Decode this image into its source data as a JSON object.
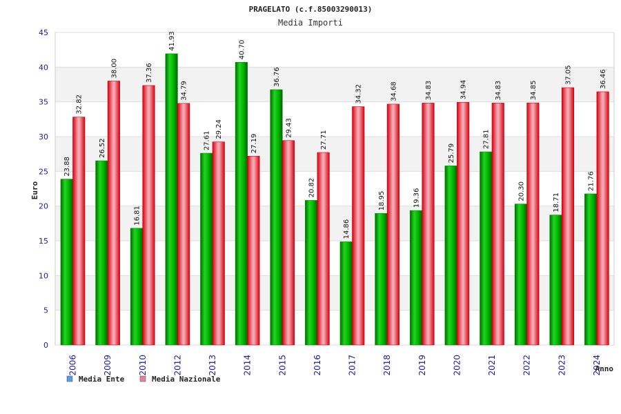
{
  "chart_data": {
    "type": "bar",
    "title": "PRAGELATO (c.f.85003290013)",
    "subtitle": "Media Importi",
    "xlabel": "Anno",
    "ylabel": "Euro",
    "ylim": [
      0,
      45
    ],
    "yticks": [
      "0",
      "5",
      "10",
      "15",
      "20",
      "25",
      "30",
      "35",
      "40",
      "45"
    ],
    "grid": true,
    "legend_position": "bottom-left",
    "categories": [
      "2006",
      "2009",
      "2010",
      "2012",
      "2013",
      "2014",
      "2015",
      "2016",
      "2017",
      "2018",
      "2019",
      "2020",
      "2021",
      "2022",
      "2023",
      "2024"
    ],
    "series": [
      {
        "name": "Media Ente",
        "color": "#00b000",
        "legend_color": "#5b9be0",
        "values": [
          23.88,
          26.52,
          16.81,
          41.93,
          27.61,
          40.7,
          36.76,
          20.82,
          14.86,
          18.95,
          19.36,
          25.79,
          27.81,
          20.3,
          18.71,
          21.76
        ],
        "labels": [
          "23.88",
          "26.52",
          "16.81",
          "41.93",
          "27.61",
          "40.70",
          "36.76",
          "20.82",
          "14.86",
          "18.95",
          "19.36",
          "25.79",
          "27.81",
          "20.30",
          "18.71",
          "21.76"
        ]
      },
      {
        "name": "Media Nazionale",
        "color": "#e00010",
        "legend_color": "#e57fa0",
        "values": [
          32.82,
          38.0,
          37.36,
          34.79,
          29.24,
          27.19,
          29.43,
          27.71,
          34.32,
          34.68,
          34.83,
          34.94,
          34.83,
          34.85,
          37.05,
          36.46
        ],
        "labels": [
          "32.82",
          "38.00",
          "37.36",
          "34.79",
          "29.24",
          "27.19",
          "29.43",
          "27.71",
          "34.32",
          "34.68",
          "34.83",
          "34.94",
          "34.83",
          "34.85",
          "37.05",
          "36.46"
        ]
      }
    ]
  }
}
